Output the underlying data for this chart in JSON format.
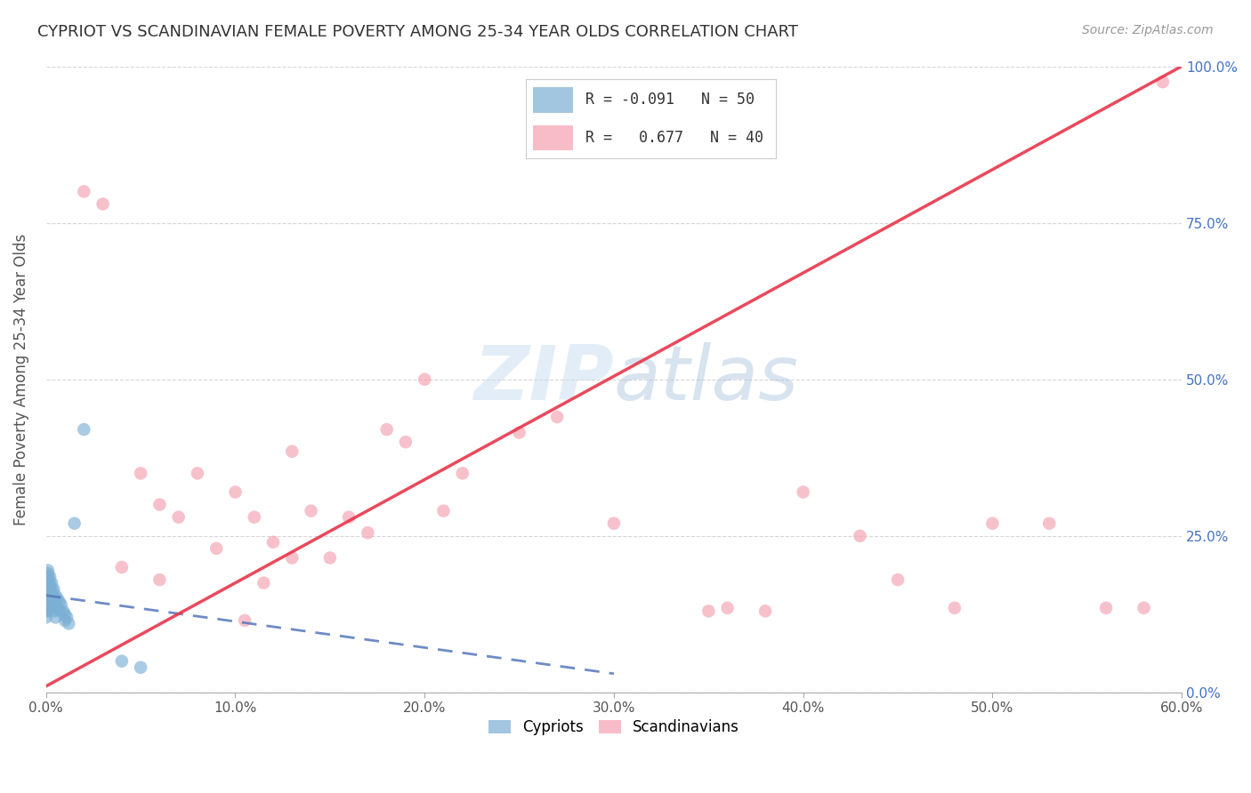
{
  "title": "CYPRIOT VS SCANDINAVIAN FEMALE POVERTY AMONG 25-34 YEAR OLDS CORRELATION CHART",
  "source": "Source: ZipAtlas.com",
  "ylabel": "Female Poverty Among 25-34 Year Olds",
  "xlim": [
    0.0,
    0.6
  ],
  "ylim": [
    0.0,
    1.0
  ],
  "xticks": [
    0.0,
    0.1,
    0.2,
    0.3,
    0.4,
    0.5,
    0.6
  ],
  "yticks": [
    0.0,
    0.25,
    0.5,
    0.75,
    1.0
  ],
  "xtick_labels": [
    "0.0%",
    "10.0%",
    "20.0%",
    "30.0%",
    "40.0%",
    "50.0%",
    "60.0%"
  ],
  "ytick_labels": [
    "0.0%",
    "25.0%",
    "50.0%",
    "75.0%",
    "100.0%"
  ],
  "cypriot_color": "#7bafd4",
  "scandinavian_color": "#f4a0b0",
  "cypriot_line_color": "#5577bb",
  "scandinavian_line_color": "#e8354a",
  "background_color": "#ffffff",
  "grid_color": "#cccccc",
  "legend_r_cypriot": "-0.091",
  "legend_n_cypriot": "50",
  "legend_r_scand": "0.677",
  "legend_n_scand": "40",
  "cyp_line_x0": 0.0,
  "cyp_line_y0": 0.155,
  "cyp_line_x1": 0.3,
  "cyp_line_y1": 0.03,
  "sc_line_x0": 0.0,
  "sc_line_y0": 0.01,
  "sc_line_x1": 0.6,
  "sc_line_y1": 1.0,
  "cypriot_x": [
    0.0,
    0.0,
    0.0,
    0.0,
    0.0,
    0.0,
    0.0,
    0.0,
    0.0,
    0.0,
    0.001,
    0.001,
    0.001,
    0.001,
    0.001,
    0.001,
    0.001,
    0.001,
    0.001,
    0.001,
    0.002,
    0.002,
    0.002,
    0.002,
    0.002,
    0.002,
    0.003,
    0.003,
    0.003,
    0.003,
    0.004,
    0.004,
    0.004,
    0.005,
    0.005,
    0.005,
    0.006,
    0.006,
    0.007,
    0.007,
    0.008,
    0.009,
    0.01,
    0.01,
    0.011,
    0.012,
    0.015,
    0.02,
    0.04,
    0.05
  ],
  "cypriot_y": [
    0.18,
    0.175,
    0.165,
    0.16,
    0.155,
    0.15,
    0.145,
    0.14,
    0.13,
    0.12,
    0.195,
    0.19,
    0.185,
    0.175,
    0.17,
    0.165,
    0.155,
    0.15,
    0.14,
    0.13,
    0.185,
    0.175,
    0.165,
    0.155,
    0.145,
    0.135,
    0.175,
    0.165,
    0.155,
    0.14,
    0.165,
    0.15,
    0.13,
    0.155,
    0.145,
    0.12,
    0.15,
    0.135,
    0.145,
    0.13,
    0.14,
    0.13,
    0.125,
    0.115,
    0.12,
    0.11,
    0.27,
    0.42,
    0.05,
    0.04
  ],
  "scandinavian_x": [
    0.02,
    0.03,
    0.04,
    0.05,
    0.06,
    0.06,
    0.07,
    0.08,
    0.09,
    0.1,
    0.105,
    0.11,
    0.115,
    0.12,
    0.13,
    0.13,
    0.14,
    0.15,
    0.16,
    0.17,
    0.18,
    0.19,
    0.2,
    0.21,
    0.22,
    0.25,
    0.27,
    0.3,
    0.35,
    0.36,
    0.38,
    0.4,
    0.43,
    0.45,
    0.48,
    0.5,
    0.53,
    0.56,
    0.58,
    0.59
  ],
  "scandinavian_y": [
    0.8,
    0.78,
    0.2,
    0.35,
    0.3,
    0.18,
    0.28,
    0.35,
    0.23,
    0.32,
    0.115,
    0.28,
    0.175,
    0.24,
    0.385,
    0.215,
    0.29,
    0.215,
    0.28,
    0.255,
    0.42,
    0.4,
    0.5,
    0.29,
    0.35,
    0.415,
    0.44,
    0.27,
    0.13,
    0.135,
    0.13,
    0.32,
    0.25,
    0.18,
    0.135,
    0.27,
    0.27,
    0.135,
    0.135,
    0.975
  ]
}
